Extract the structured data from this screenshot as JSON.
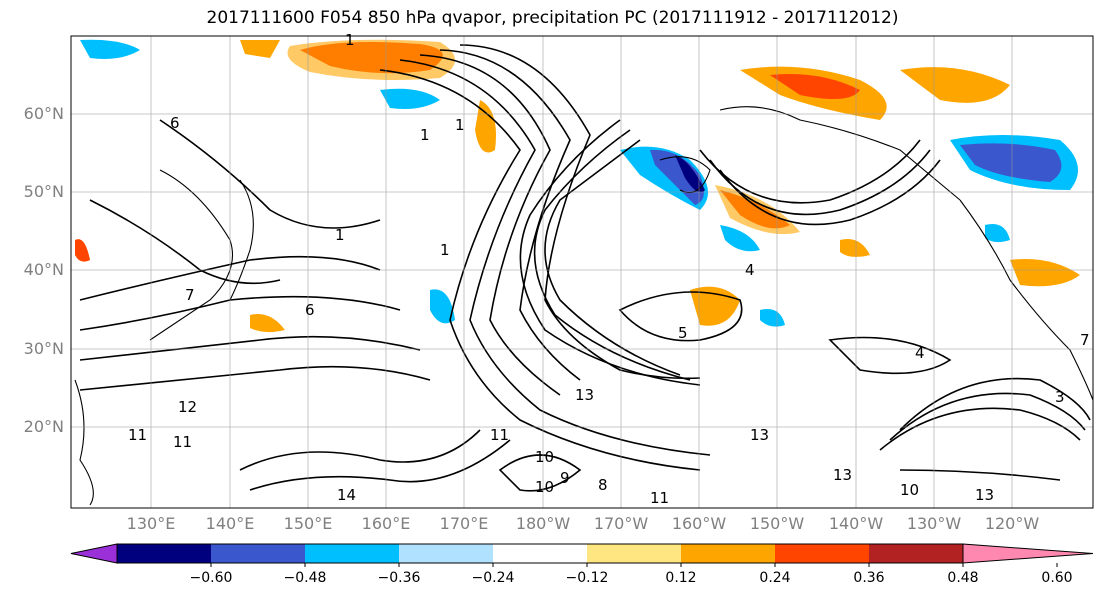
{
  "title": "2017111600 F054 850 hPa qvapor, precipitation PC (2017111912 - 2017112012)",
  "map": {
    "projection": "cylindrical",
    "lat_labels": [
      "60°N",
      "50°N",
      "40°N",
      "30°N",
      "20°N"
    ],
    "lon_labels": [
      "130°E",
      "140°E",
      "150°E",
      "160°E",
      "170°E",
      "180°W",
      "170°W",
      "160°W",
      "150°W",
      "140°W",
      "130°W",
      "120°W"
    ],
    "contour_labels": [
      "1",
      "1",
      "1",
      "1",
      "1",
      "6",
      "6",
      "4",
      "5",
      "12",
      "11",
      "11",
      "14",
      "10",
      "10",
      "9",
      "8",
      "11",
      "13",
      "13",
      "13",
      "13",
      "4",
      "3",
      "7",
      "10",
      "11",
      "7"
    ],
    "contour_color": "#000000"
  },
  "colorbar": {
    "ticks": [
      "−0.60",
      "−0.48",
      "−0.36",
      "−0.24",
      "−0.12",
      "0.12",
      "0.24",
      "0.36",
      "0.48",
      "0.60"
    ],
    "colors": [
      "#9b30d9",
      "#00007f",
      "#3a57cd",
      "#00bfff",
      "#b0e2ff",
      "#ffffff",
      "#ffe680",
      "#ffa500",
      "#ff4500",
      "#b22222",
      "#ff88b0"
    ]
  }
}
